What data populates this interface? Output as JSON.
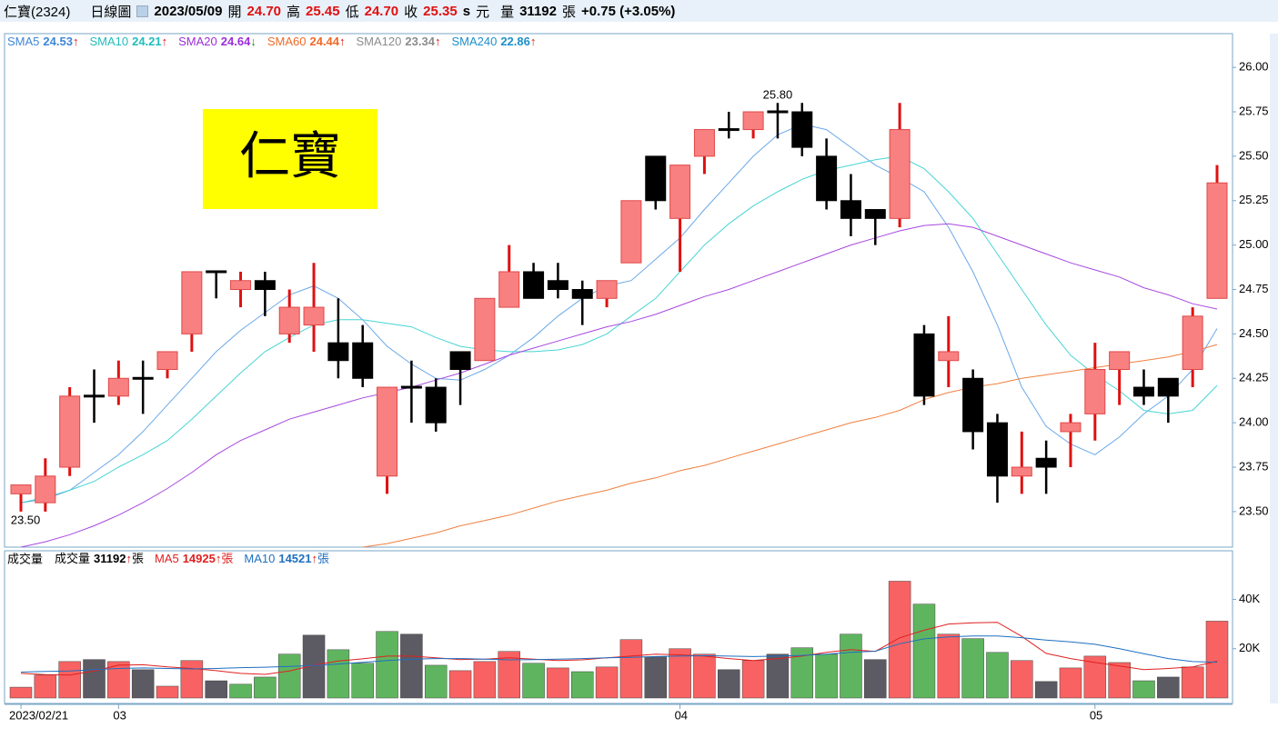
{
  "header": {
    "stock": "仁寶(2324)",
    "period": "日線圖",
    "date": "2023/05/09",
    "fields": [
      {
        "label": "開",
        "value": "24.70"
      },
      {
        "label": "高",
        "value": "25.45"
      },
      {
        "label": "低",
        "value": "24.70"
      },
      {
        "label": "收",
        "value": "25.35"
      }
    ],
    "unit_s": "s",
    "unit": "元",
    "volume_label": "量",
    "volume": "31192",
    "volume_unit": "張",
    "change": "+0.75 (+3.05%)"
  },
  "chart_data": [
    {
      "type": "candlestick",
      "overlay_title": "仁寶",
      "high_label": "25.80",
      "low_label": "23.50",
      "up_color": "#f88080",
      "up_line_color": "#e01010",
      "down_color": "#000000",
      "ylim": [
        23.3,
        26.19
      ],
      "yticks": [
        {
          "value": 23.5,
          "label": "23.50"
        },
        23.75,
        {
          "value": 24,
          "label": "24.00"
        },
        24.25,
        {
          "value": 24.5,
          "label": "24.50"
        },
        24.75,
        {
          "value": 25,
          "label": "25.00"
        },
        25.25,
        {
          "value": 25.5,
          "label": "25.50"
        },
        25.75,
        {
          "value": 26,
          "label": "26.00"
        }
      ],
      "open": [
        23.6,
        23.55,
        23.75,
        24.15,
        24.15,
        24.25,
        24.3,
        24.5,
        24.85,
        24.75,
        24.8,
        24.5,
        24.55,
        24.45,
        24.45,
        23.7,
        24.2,
        24.2,
        24.4,
        24.35,
        24.65,
        24.85,
        24.8,
        24.75,
        24.7,
        24.9,
        25.5,
        25.15,
        25.5,
        25.65,
        25.65,
        25.75,
        25.75,
        25.5,
        25.25,
        25.2,
        25.15,
        24.5,
        24.35,
        24.25,
        24.0,
        23.7,
        23.8,
        23.95,
        24.05,
        24.3,
        24.2,
        24.25,
        24.3,
        24.7
      ],
      "high": [
        23.65,
        23.8,
        24.2,
        24.3,
        24.35,
        24.35,
        24.4,
        24.85,
        24.85,
        24.85,
        24.85,
        24.75,
        24.9,
        24.7,
        24.55,
        24.2,
        24.35,
        24.25,
        24.4,
        24.7,
        25.0,
        24.9,
        24.9,
        24.8,
        24.8,
        25.25,
        25.5,
        25.45,
        25.65,
        25.75,
        25.75,
        25.8,
        25.8,
        25.6,
        25.4,
        25.2,
        25.8,
        24.55,
        24.6,
        24.3,
        24.05,
        23.95,
        23.9,
        24.05,
        24.45,
        24.4,
        24.3,
        24.25,
        24.65,
        25.45
      ],
      "low": [
        23.5,
        23.5,
        23.7,
        24.0,
        24.1,
        24.05,
        24.25,
        24.4,
        24.7,
        24.65,
        24.6,
        24.45,
        24.4,
        24.25,
        24.2,
        23.6,
        24.0,
        23.95,
        24.1,
        24.35,
        24.65,
        24.7,
        24.7,
        24.55,
        24.65,
        24.9,
        25.2,
        24.85,
        25.4,
        25.6,
        25.6,
        25.6,
        25.5,
        25.2,
        25.05,
        25.0,
        25.1,
        24.1,
        24.2,
        23.85,
        23.55,
        23.6,
        23.6,
        23.75,
        23.9,
        24.1,
        24.1,
        24.0,
        24.2,
        24.7
      ],
      "close": [
        23.65,
        23.7,
        24.15,
        24.15,
        24.25,
        24.25,
        24.4,
        24.85,
        24.85,
        24.8,
        24.75,
        24.65,
        24.65,
        24.35,
        24.25,
        24.2,
        24.2,
        24.0,
        24.3,
        24.7,
        24.85,
        24.7,
        24.75,
        24.7,
        24.8,
        25.25,
        25.25,
        25.45,
        25.65,
        25.65,
        25.75,
        25.75,
        25.55,
        25.25,
        25.15,
        25.15,
        25.65,
        24.15,
        24.4,
        23.95,
        23.7,
        23.75,
        23.75,
        24.0,
        24.3,
        24.4,
        24.15,
        24.15,
        24.6,
        25.35
      ],
      "series": [
        {
          "name": "SMA5",
          "legend_value": "24.53",
          "trend": "↑",
          "color": "#3f86d8",
          "line_color": "#6aa8e8",
          "values": [
            23.55,
            23.57,
            23.62,
            23.72,
            23.82,
            23.95,
            24.1,
            24.25,
            24.4,
            24.52,
            24.62,
            24.72,
            24.77,
            24.7,
            24.58,
            24.43,
            24.33,
            24.25,
            24.24,
            24.3,
            24.38,
            24.48,
            24.6,
            24.7,
            24.77,
            24.8,
            24.92,
            25.04,
            25.2,
            25.35,
            25.5,
            25.62,
            25.68,
            25.65,
            25.55,
            25.45,
            25.38,
            25.3,
            25.1,
            24.85,
            24.55,
            24.2,
            23.98,
            23.88,
            23.82,
            23.92,
            24.05,
            24.15,
            24.3,
            24.53
          ]
        },
        {
          "name": "SMA10",
          "legend_value": "24.21",
          "trend": "↑",
          "color": "#22bcbc",
          "line_color": "#48d4d4",
          "values": [
            23.55,
            23.58,
            23.62,
            23.67,
            23.75,
            23.82,
            23.9,
            24.02,
            24.15,
            24.28,
            24.4,
            24.48,
            24.55,
            24.58,
            24.58,
            24.56,
            24.54,
            24.48,
            24.43,
            24.41,
            24.4,
            24.4,
            24.41,
            24.44,
            24.5,
            24.6,
            24.7,
            24.85,
            25.0,
            25.12,
            25.22,
            25.3,
            25.37,
            25.42,
            25.45,
            25.48,
            25.5,
            25.43,
            25.3,
            25.15,
            24.95,
            24.75,
            24.55,
            24.38,
            24.27,
            24.18,
            24.07,
            24.05,
            24.07,
            24.21
          ]
        },
        {
          "name": "SMA20",
          "legend_value": "24.64",
          "trend": "↓",
          "color": "#9a2ed8",
          "line_color": "#a848e0",
          "values": [
            23.3,
            23.33,
            23.37,
            23.42,
            23.48,
            23.55,
            23.63,
            23.72,
            23.82,
            23.9,
            23.96,
            24.02,
            24.06,
            24.1,
            24.14,
            24.17,
            24.2,
            24.24,
            24.28,
            24.33,
            24.38,
            24.42,
            24.46,
            24.5,
            24.54,
            24.57,
            24.61,
            24.66,
            24.71,
            24.75,
            24.8,
            24.85,
            24.9,
            24.95,
            25.0,
            25.04,
            25.08,
            25.11,
            25.12,
            25.1,
            25.05,
            25.0,
            24.95,
            24.9,
            24.86,
            24.82,
            24.76,
            24.72,
            24.67,
            24.64
          ]
        },
        {
          "name": "SMA60",
          "legend_value": "24.44",
          "trend": "↑",
          "color": "#f06a28",
          "line_color": "#f08040",
          "values": [
            null,
            null,
            null,
            null,
            null,
            null,
            null,
            null,
            null,
            null,
            null,
            null,
            null,
            null,
            23.3,
            23.32,
            23.35,
            23.38,
            23.42,
            23.45,
            23.48,
            23.52,
            23.56,
            23.59,
            23.62,
            23.66,
            23.69,
            23.73,
            23.76,
            23.8,
            23.84,
            23.88,
            23.92,
            23.96,
            24.0,
            24.03,
            24.07,
            24.13,
            24.17,
            24.2,
            24.22,
            24.25,
            24.27,
            24.29,
            24.31,
            24.33,
            24.35,
            24.37,
            24.4,
            24.44
          ]
        },
        {
          "name": "SMA120",
          "legend_value": "23.34",
          "trend": "↑",
          "color": "#8c8c8c"
        },
        {
          "name": "SMA240",
          "legend_value": "22.86",
          "trend": "↑",
          "color": "#1e8fc8"
        }
      ]
    },
    {
      "type": "bar",
      "title": "成交量",
      "ylim": [
        0,
        59000
      ],
      "yticks": [
        {
          "value": 20000,
          "label": "20K"
        },
        {
          "value": 40000,
          "label": "40K"
        }
      ],
      "categories": [
        "2023/02/21",
        null,
        null,
        null,
        "03",
        null,
        null,
        null,
        null,
        null,
        null,
        null,
        null,
        null,
        null,
        null,
        null,
        null,
        null,
        null,
        null,
        null,
        null,
        null,
        null,
        null,
        null,
        "04",
        null,
        null,
        null,
        null,
        null,
        null,
        null,
        null,
        null,
        null,
        null,
        null,
        null,
        null,
        null,
        null,
        "05",
        null,
        null,
        null,
        null,
        null
      ],
      "series": [
        {
          "name": "成交量",
          "legend_value": "31192",
          "trend": "↑",
          "unit": "張",
          "color": "#000000",
          "values": [
            4400,
            9300,
            14800,
            15600,
            14800,
            11500,
            4800,
            15200,
            7000,
            5600,
            8500,
            17800,
            25500,
            19600,
            14100,
            27000,
            25900,
            13300,
            11100,
            14800,
            18900,
            14100,
            12200,
            10700,
            12600,
            23700,
            16700,
            20000,
            17800,
            11500,
            15200,
            17800,
            20400,
            17800,
            25900,
            15600,
            47400,
            38100,
            25900,
            24100,
            18500,
            15200,
            6700,
            12200,
            17000,
            14400,
            7000,
            8500,
            12600,
            31192
          ],
          "colors": [
            "#f86262",
            "#f86262",
            "#f86262",
            "#5c5a62",
            "#f86262",
            "#5c5a62",
            "#f86262",
            "#f86262",
            "#5c5a62",
            "#5fb55f",
            "#5fb55f",
            "#5fb55f",
            "#5c5a62",
            "#5fb55f",
            "#5fb55f",
            "#5fb55f",
            "#5c5a62",
            "#5fb55f",
            "#f86262",
            "#f86262",
            "#f86262",
            "#5fb55f",
            "#f86262",
            "#5fb55f",
            "#f86262",
            "#f86262",
            "#5c5a62",
            "#f86262",
            "#f86262",
            "#5c5a62",
            "#f86262",
            "#5c5a62",
            "#5fb55f",
            "#5fb55f",
            "#5fb55f",
            "#5c5a62",
            "#f86262",
            "#5fb55f",
            "#f86262",
            "#5fb55f",
            "#5fb55f",
            "#f86262",
            "#5c5a62",
            "#f86262",
            "#f86262",
            "#f86262",
            "#5fb55f",
            "#5c5a62",
            "#f86262",
            "#f86262"
          ]
        },
        {
          "name": "MA5",
          "legend_value": "14925",
          "trend": "↑",
          "unit": "張",
          "color": "#e02020",
          "values": [
            10000,
            9500,
            9300,
            11000,
            13300,
            13500,
            12600,
            12000,
            11100,
            10000,
            9600,
            11000,
            13300,
            15000,
            15900,
            17000,
            17000,
            16300,
            15600,
            15800,
            16300,
            15800,
            15200,
            15500,
            16300,
            17000,
            17800,
            17500,
            17000,
            16000,
            15200,
            16000,
            17000,
            18500,
            19600,
            18900,
            24400,
            27500,
            30000,
            30500,
            30700,
            25000,
            18100,
            16000,
            14400,
            13000,
            11500,
            12000,
            12600,
            14925
          ]
        },
        {
          "name": "MA10",
          "legend_value": "14521",
          "trend": "↑",
          "unit": "張",
          "color": "#1f6fc0",
          "values": [
            10500,
            10800,
            11000,
            11500,
            12000,
            12200,
            12000,
            11800,
            12000,
            12300,
            12500,
            12800,
            13200,
            13800,
            14500,
            15200,
            15800,
            16000,
            16000,
            15800,
            15500,
            15600,
            15800,
            16000,
            16300,
            16500,
            16800,
            17000,
            17200,
            17000,
            16800,
            17000,
            17300,
            17800,
            18500,
            19000,
            22000,
            24000,
            24800,
            25200,
            25200,
            24500,
            23500,
            22800,
            21800,
            20000,
            18000,
            16000,
            14800,
            14521
          ]
        }
      ]
    }
  ]
}
